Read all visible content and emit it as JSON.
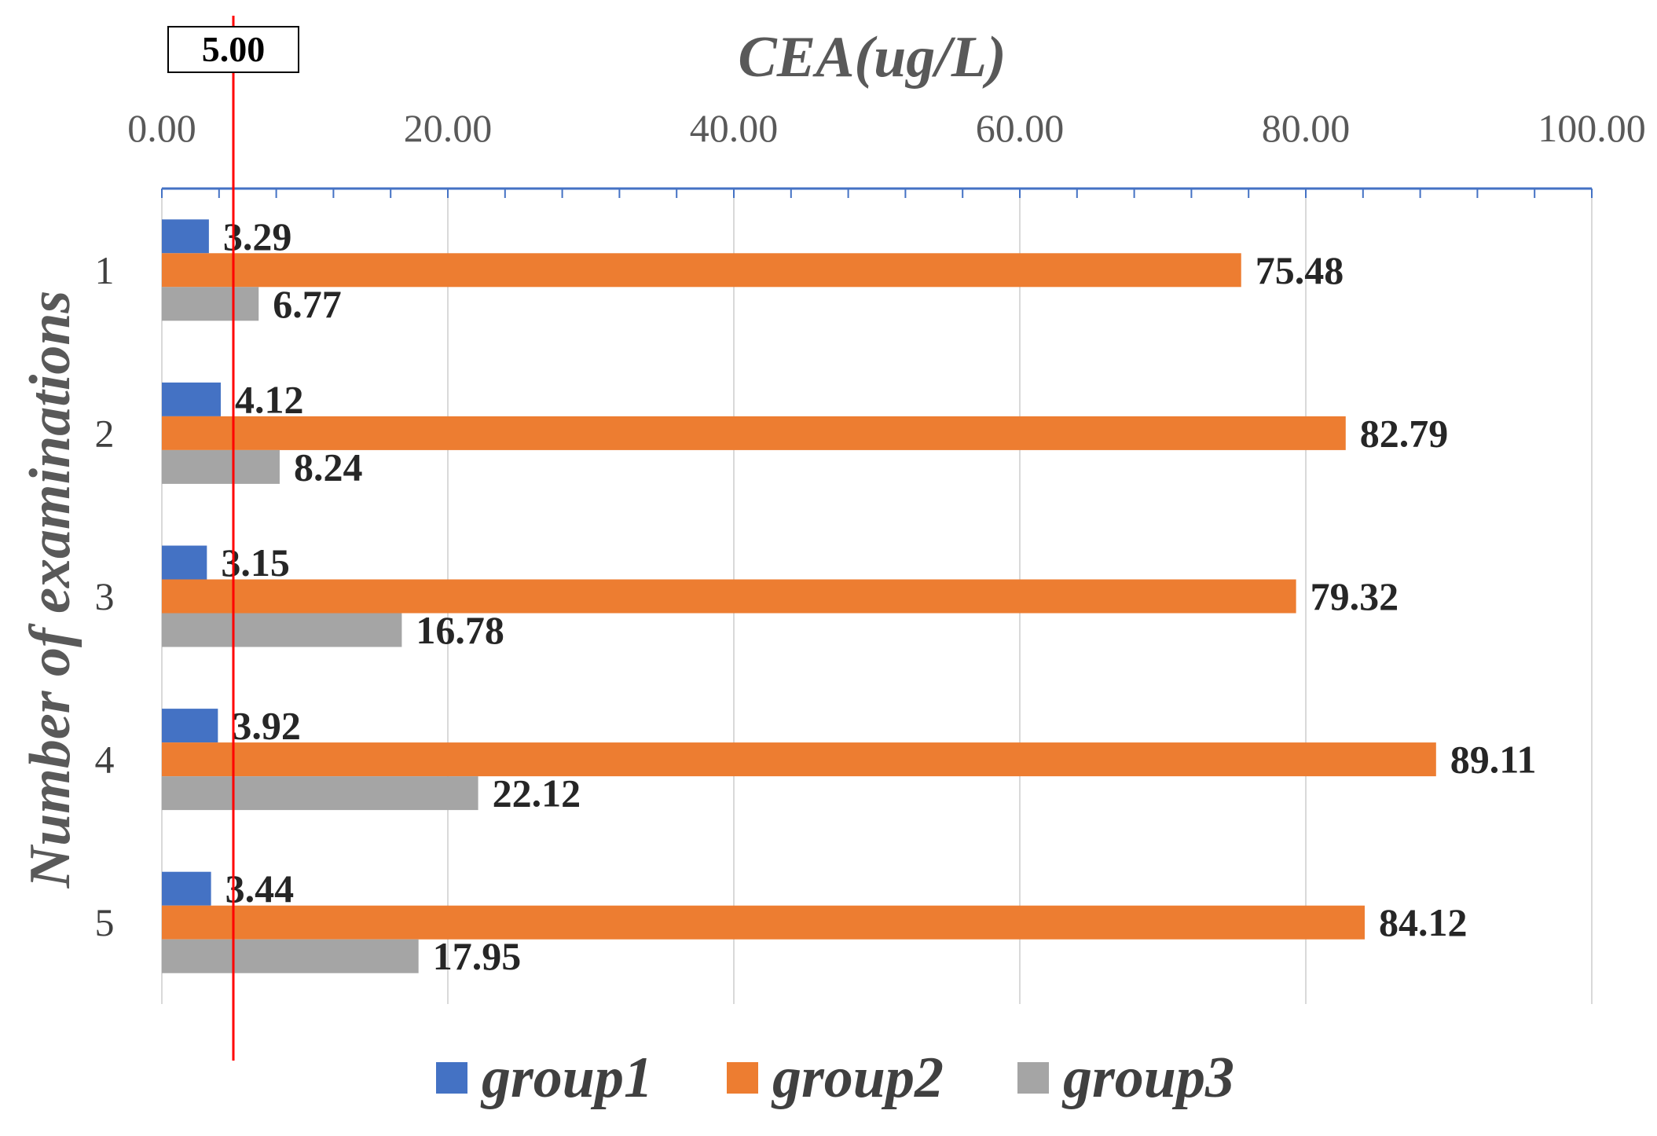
{
  "chart_data": {
    "type": "bar",
    "orientation": "horizontal",
    "title": "",
    "xlabel": "CEA(ug/L)",
    "ylabel": "Number of examinations",
    "xlim": [
      0,
      100
    ],
    "x_ticks": [
      "0.00",
      "20.00",
      "40.00",
      "60.00",
      "80.00",
      "100.00"
    ],
    "x_tick_values": [
      0,
      20,
      40,
      60,
      80,
      100
    ],
    "x_axis_position": "top",
    "grid": true,
    "categories": [
      "1",
      "2",
      "3",
      "4",
      "5"
    ],
    "series": [
      {
        "name": "group1",
        "color": "#4472C4",
        "values": [
          3.29,
          4.12,
          3.15,
          3.92,
          3.44
        ],
        "labels": [
          "3.29",
          "4.12",
          "3.15",
          "3.92",
          "3.44"
        ]
      },
      {
        "name": "group2",
        "color": "#ED7D31",
        "values": [
          75.48,
          82.79,
          79.32,
          89.11,
          84.12
        ],
        "labels": [
          "75.48",
          "82.79",
          "79.32",
          "89.11",
          "84.12"
        ]
      },
      {
        "name": "group3",
        "color": "#A5A5A5",
        "values": [
          6.77,
          8.24,
          16.78,
          22.12,
          17.95
        ],
        "labels": [
          "6.77",
          "8.24",
          "16.78",
          "22.12",
          "17.95"
        ]
      }
    ],
    "reference_line": {
      "value": 5.0,
      "label": "5.00",
      "color": "#FF0000"
    },
    "legend": {
      "position": "bottom",
      "entries": [
        "group1",
        "group2",
        "group3"
      ]
    }
  }
}
